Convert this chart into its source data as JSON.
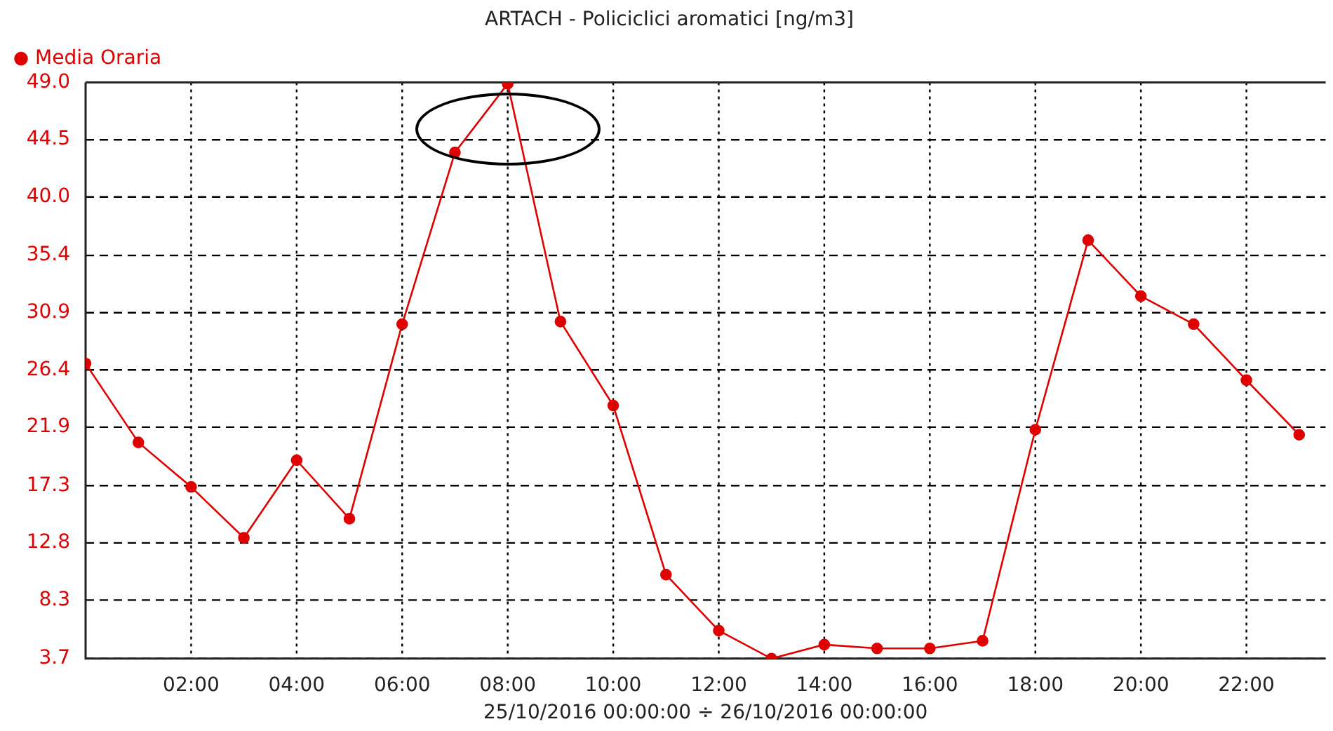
{
  "chart_data": {
    "type": "line",
    "title": "ARTACH - Policiclici aromatici [ng/m3]",
    "xlabel": "25/10/2016 00:00:00 ÷ 26/10/2016 00:00:00",
    "x": [
      0,
      1,
      2,
      3,
      4,
      5,
      6,
      7,
      8,
      9,
      10,
      11,
      12,
      13,
      14,
      15,
      16,
      17,
      18,
      19,
      20,
      21,
      22,
      23
    ],
    "series": [
      {
        "name": "Media Oraria",
        "color": "#e00000",
        "values": [
          26.9,
          20.7,
          17.2,
          13.2,
          19.3,
          14.7,
          30.0,
          43.5,
          48.9,
          30.2,
          23.6,
          10.3,
          5.9,
          3.7,
          4.8,
          4.5,
          4.5,
          5.1,
          21.7,
          36.6,
          32.2,
          30.0,
          25.6,
          21.3
        ]
      }
    ],
    "xlim": [
      0,
      23.5
    ],
    "xticks": [
      {
        "value": 2,
        "label": "02:00"
      },
      {
        "value": 4,
        "label": "04:00"
      },
      {
        "value": 6,
        "label": "06:00"
      },
      {
        "value": 8,
        "label": "08:00"
      },
      {
        "value": 10,
        "label": "10:00"
      },
      {
        "value": 12,
        "label": "12:00"
      },
      {
        "value": 14,
        "label": "14:00"
      },
      {
        "value": 16,
        "label": "16:00"
      },
      {
        "value": 18,
        "label": "18:00"
      },
      {
        "value": 20,
        "label": "20:00"
      },
      {
        "value": 22,
        "label": "22:00"
      }
    ],
    "ylim": [
      3.7,
      49
    ],
    "yticks": [
      3.7,
      8.3,
      12.8,
      17.3,
      21.9,
      26.4,
      30.9,
      35.4,
      {
        "value": 40,
        "label": "40.0"
      },
      44.5,
      {
        "value": 49,
        "label": "49.0"
      }
    ],
    "grid": true,
    "legend": "top left",
    "marker": "circle",
    "line_style": "solid"
  }
}
